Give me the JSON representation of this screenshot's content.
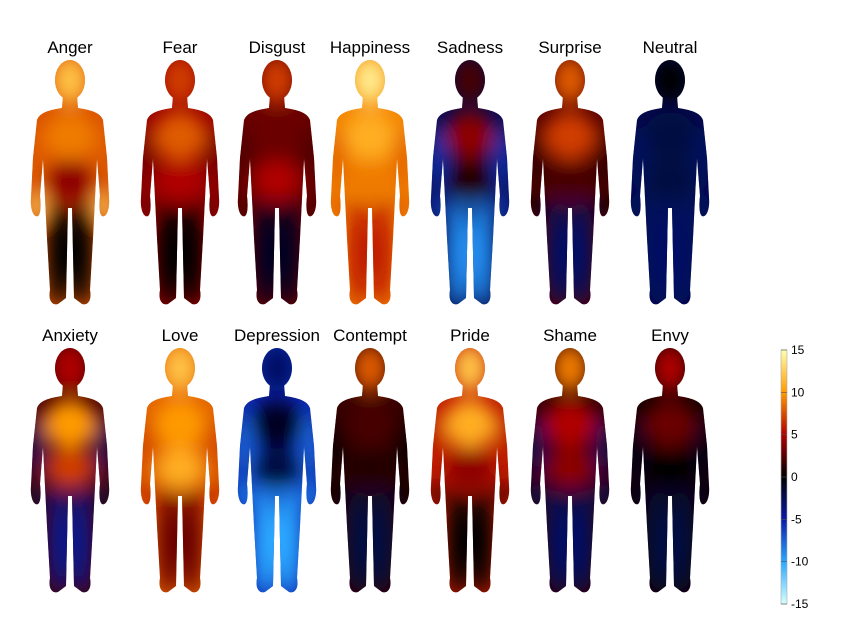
{
  "chart_data": {
    "type": "heatmap",
    "regions": [
      "head",
      "chest",
      "abdomen",
      "arms",
      "hands",
      "legs"
    ],
    "panels": [
      {
        "title": "Anger",
        "values": [
          12,
          9,
          4,
          8,
          13,
          0
        ]
      },
      {
        "title": "Fear",
        "values": [
          7,
          8,
          5,
          3,
          3,
          0
        ]
      },
      {
        "title": "Disgust",
        "values": [
          7,
          3,
          5,
          2,
          2,
          -1
        ]
      },
      {
        "title": "Happiness",
        "values": [
          14,
          11,
          9,
          8,
          8,
          6
        ]
      },
      {
        "title": "Sadness",
        "values": [
          2,
          4,
          1,
          -6,
          -6,
          -9
        ]
      },
      {
        "title": "Surprise",
        "values": [
          8,
          7,
          2,
          1,
          0,
          -3
        ]
      },
      {
        "title": "Neutral",
        "values": [
          0,
          -2,
          -2,
          -3,
          -3,
          -3
        ]
      },
      {
        "title": "Anxiety",
        "values": [
          5,
          10,
          7,
          -3,
          -2,
          -4
        ]
      },
      {
        "title": "Love",
        "values": [
          12,
          10,
          11,
          7,
          6,
          3
        ]
      },
      {
        "title": "Depression",
        "values": [
          -3,
          -1,
          -2,
          -8,
          -9,
          -10
        ]
      },
      {
        "title": "Contempt",
        "values": [
          8,
          2,
          1,
          0,
          0,
          -2
        ]
      },
      {
        "title": "Pride",
        "values": [
          12,
          11,
          4,
          6,
          2,
          0
        ]
      },
      {
        "title": "Shame",
        "values": [
          9,
          5,
          4,
          -3,
          -3,
          -3
        ]
      },
      {
        "title": "Envy",
        "values": [
          5,
          3,
          0,
          -1,
          -1,
          -2
        ]
      }
    ],
    "colorbar": {
      "range": [
        -15,
        15
      ],
      "ticks": [
        15,
        10,
        5,
        0,
        -5,
        -10,
        -15
      ],
      "colormap": [
        {
          "v": -15,
          "color": "#d8ffff"
        },
        {
          "v": -10,
          "color": "#2aa8ff"
        },
        {
          "v": -5,
          "color": "#0a1aa8"
        },
        {
          "v": 0,
          "color": "#000000"
        },
        {
          "v": 5,
          "color": "#b00000"
        },
        {
          "v": 10,
          "color": "#ff9a00"
        },
        {
          "v": 15,
          "color": "#ffffb0"
        }
      ]
    }
  }
}
